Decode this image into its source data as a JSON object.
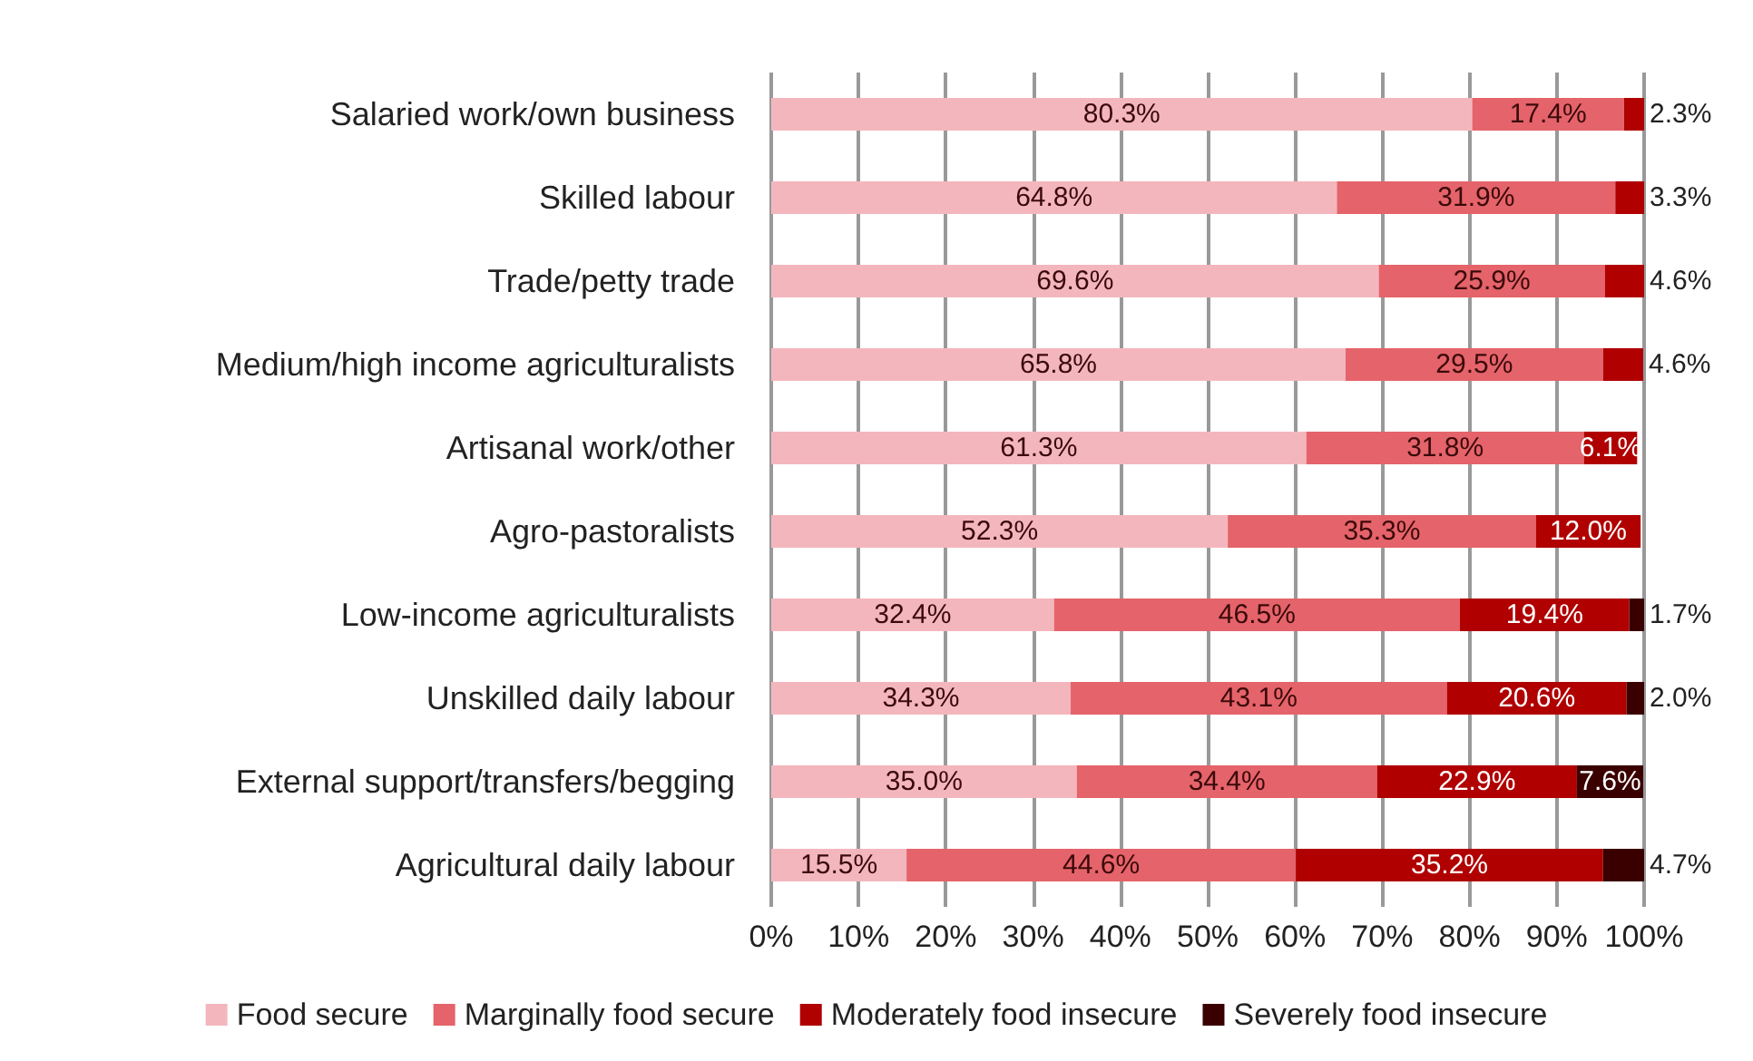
{
  "chart_data": {
    "type": "bar",
    "orientation": "horizontal",
    "stacked": true,
    "grid": "x",
    "legend": "bottom",
    "categories": [
      "Salaried work/own business",
      "Skilled labour",
      "Trade/petty trade",
      "Medium/high income agriculturalists",
      "Artisanal work/other",
      "Agro-pastoralists",
      "Low-income agriculturalists",
      "Unskilled daily labour",
      "External support/transfers/begging",
      "Agricultural daily labour"
    ],
    "xlim": [
      0,
      100
    ],
    "xticks": [
      {
        "value": 0,
        "label": "0%"
      },
      {
        "value": 10,
        "label": "10%"
      },
      {
        "value": 20,
        "label": "20%"
      },
      {
        "value": 30,
        "label": "30%"
      },
      {
        "value": 40,
        "label": "40%"
      },
      {
        "value": 50,
        "label": "50%"
      },
      {
        "value": 60,
        "label": "60%"
      },
      {
        "value": 70,
        "label": "70%"
      },
      {
        "value": 80,
        "label": "80%"
      },
      {
        "value": 90,
        "label": "90%"
      },
      {
        "value": 100,
        "label": "100%"
      }
    ],
    "series": [
      {
        "name": "Food secure",
        "color": "#f4b6bd",
        "values": [
          80.3,
          64.8,
          69.6,
          65.8,
          61.3,
          52.3,
          32.4,
          34.3,
          35.0,
          15.5
        ],
        "value_labels": [
          "80.3%",
          "64.8%",
          "69.6%",
          "65.8%",
          "61.3%",
          "52.3%",
          "32.4%",
          "34.3%",
          "35.0%",
          "15.5%"
        ]
      },
      {
        "name": "Marginally food secure",
        "color": "#e5636a",
        "values": [
          17.4,
          31.9,
          25.9,
          29.5,
          31.8,
          35.3,
          46.5,
          43.1,
          34.4,
          44.6
        ],
        "value_labels": [
          "17.4%",
          "31.9%",
          "25.9%",
          "29.5%",
          "31.8%",
          "35.3%",
          "46.5%",
          "43.1%",
          "34.4%",
          "44.6%"
        ]
      },
      {
        "name": "Moderately food insecure",
        "color": "#b00000",
        "values": [
          2.3,
          3.3,
          4.6,
          4.6,
          6.1,
          12.0,
          19.4,
          20.6,
          22.9,
          35.2
        ],
        "value_labels": [
          "2.3%",
          "3.3%",
          "4.6%",
          "4.6%",
          "6.1%",
          "12.0%",
          "19.4%",
          "20.6%",
          "22.9%",
          "35.2%"
        ]
      },
      {
        "name": "Severely food insecure",
        "color": "#3a0000",
        "values": [
          null,
          null,
          null,
          null,
          null,
          null,
          1.7,
          2.0,
          7.6,
          4.7
        ],
        "value_labels": [
          null,
          null,
          null,
          null,
          null,
          null,
          "1.7%",
          "2.0%",
          "7.6%",
          "4.7%"
        ]
      }
    ]
  }
}
